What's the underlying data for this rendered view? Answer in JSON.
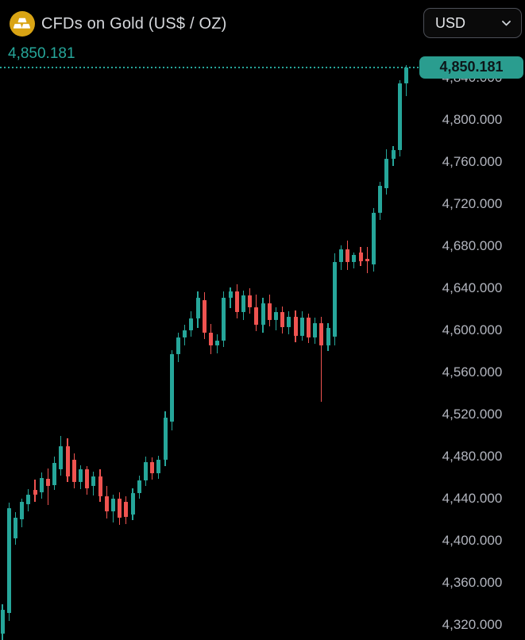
{
  "header": {
    "title": "CFDs on Gold (US$ / OZ)",
    "symbol_icon": "gold-bars-icon",
    "currency_selector": {
      "value": "USD",
      "chevron_icon": "chevron-down-icon"
    }
  },
  "chart_data": {
    "type": "candlestick",
    "title": "CFDs on Gold (US$ / OZ)",
    "unit": "US$ / OZ",
    "currency": "USD",
    "last_price": 4850.181,
    "last_price_label": "4,850.181",
    "grid": false,
    "x_axis": {
      "visible": false
    },
    "y_axis": {
      "side": "right",
      "min": 4320,
      "max": 4840,
      "tick_step": 40,
      "ticks": [
        {
          "value": 4840,
          "label": "4,840.000"
        },
        {
          "value": 4800,
          "label": "4,800.000"
        },
        {
          "value": 4760,
          "label": "4,760.000"
        },
        {
          "value": 4720,
          "label": "4,720.000"
        },
        {
          "value": 4680,
          "label": "4,680.000"
        },
        {
          "value": 4640,
          "label": "4,640.000"
        },
        {
          "value": 4600,
          "label": "4,600.000"
        },
        {
          "value": 4560,
          "label": "4,560.000"
        },
        {
          "value": 4520,
          "label": "4,520.000"
        },
        {
          "value": 4480,
          "label": "4,480.000"
        },
        {
          "value": 4440,
          "label": "4,440.000"
        },
        {
          "value": 4400,
          "label": "4,400.000"
        },
        {
          "value": 4360,
          "label": "4,360.000"
        },
        {
          "value": 4320,
          "label": "4,320.000"
        }
      ]
    },
    "candles_ohlc": [
      [
        4312,
        4340,
        4306,
        4334
      ],
      [
        4331,
        4436,
        4324,
        4431
      ],
      [
        4402,
        4427,
        4396,
        4422
      ],
      [
        4420,
        4440,
        4413,
        4437
      ],
      [
        4435,
        4449,
        4428,
        4444
      ],
      [
        4448,
        4458,
        4437,
        4444
      ],
      [
        4446,
        4465,
        4440,
        4460
      ],
      [
        4459,
        4469,
        4434,
        4452
      ],
      [
        4453,
        4480,
        4448,
        4474
      ],
      [
        4468,
        4500,
        4462,
        4490
      ],
      [
        4490,
        4497,
        4456,
        4461
      ],
      [
        4477,
        4483,
        4450,
        4456
      ],
      [
        4456,
        4472,
        4449,
        4468
      ],
      [
        4468,
        4471,
        4444,
        4450
      ],
      [
        4452,
        4466,
        4443,
        4461
      ],
      [
        4461,
        4468,
        4437,
        4442
      ],
      [
        4442,
        4452,
        4421,
        4428
      ],
      [
        4428,
        4444,
        4417,
        4440
      ],
      [
        4440,
        4446,
        4415,
        4422
      ],
      [
        4437,
        4442,
        4416,
        4423
      ],
      [
        4425,
        4450,
        4420,
        4445
      ],
      [
        4445,
        4462,
        4440,
        4457
      ],
      [
        4457,
        4480,
        4452,
        4475
      ],
      [
        4475,
        4479,
        4458,
        4464
      ],
      [
        4464,
        4481,
        4459,
        4477
      ],
      [
        4477,
        4523,
        4471,
        4517
      ],
      [
        4513,
        4581,
        4505,
        4577
      ],
      [
        4577,
        4598,
        4570,
        4593
      ],
      [
        4593,
        4605,
        4586,
        4600
      ],
      [
        4600,
        4618,
        4594,
        4611
      ],
      [
        4611,
        4637,
        4602,
        4631
      ],
      [
        4629,
        4636,
        4592,
        4598
      ],
      [
        4598,
        4606,
        4577,
        4586
      ],
      [
        4586,
        4596,
        4578,
        4590
      ],
      [
        4590,
        4637,
        4584,
        4631
      ],
      [
        4631,
        4641,
        4621,
        4637
      ],
      [
        4637,
        4644,
        4611,
        4617
      ],
      [
        4617,
        4638,
        4610,
        4633
      ],
      [
        4633,
        4640,
        4616,
        4622
      ],
      [
        4622,
        4634,
        4599,
        4605
      ],
      [
        4605,
        4631,
        4598,
        4626
      ],
      [
        4626,
        4634,
        4604,
        4610
      ],
      [
        4610,
        4622,
        4600,
        4617
      ],
      [
        4617,
        4623,
        4597,
        4603
      ],
      [
        4603,
        4618,
        4596,
        4613
      ],
      [
        4613,
        4619,
        4589,
        4595
      ],
      [
        4595,
        4618,
        4590,
        4612
      ],
      [
        4612,
        4616,
        4588,
        4593
      ],
      [
        4593,
        4612,
        4587,
        4607
      ],
      [
        4607,
        4613,
        4532,
        4586
      ],
      [
        4586,
        4607,
        4580,
        4602
      ],
      [
        4594,
        4673,
        4586,
        4665
      ],
      [
        4665,
        4681,
        4657,
        4677
      ],
      [
        4677,
        4685,
        4657,
        4665
      ],
      [
        4665,
        4674,
        4659,
        4672
      ],
      [
        4674,
        4679,
        4661,
        4666
      ],
      [
        4668,
        4679,
        4654,
        4666
      ],
      [
        4663,
        4716,
        4656,
        4712
      ],
      [
        4712,
        4741,
        4705,
        4737
      ],
      [
        4735,
        4772,
        4729,
        4763
      ],
      [
        4763,
        4775,
        4756,
        4771
      ],
      [
        4771,
        4838,
        4765,
        4835
      ],
      [
        4835,
        4852,
        4823,
        4850.181
      ]
    ],
    "colors": {
      "up": "#26a69a",
      "down": "#ef5350",
      "background": "#000000",
      "axis_text": "#b2b5be",
      "title_text": "#d6d8dc",
      "last_price_text": "#26a69a",
      "badge_bg": "#2a9d8f",
      "badge_text": "#0d1619",
      "button_border": "#4c4f57",
      "button_text": "#e4e6e9"
    }
  }
}
